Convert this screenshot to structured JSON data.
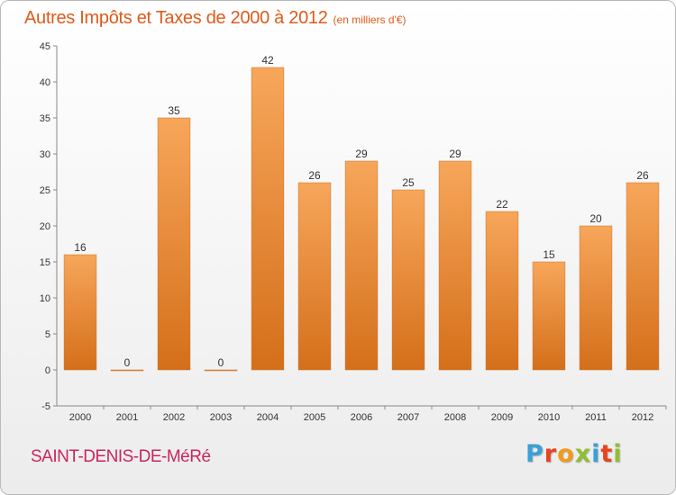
{
  "title": {
    "main": "Autres Impôts et Taxes de 2000 à 2012",
    "unit": "(en milliers d'€)"
  },
  "commune": "SAINT-DENIS-DE-MéRé",
  "logo": {
    "letters": [
      "P",
      "r",
      "o",
      "x",
      "i",
      "t",
      "i"
    ],
    "colors": [
      "#3aa0d8",
      "#e8431f",
      "#f29a1a",
      "#8fbf2f",
      "#3aa0d8",
      "#e8431f",
      "#8fbf2f"
    ]
  },
  "colors": {
    "bar_light": "#f7a65a",
    "bar_dark": "#d46f1a",
    "title": "#e05a1a",
    "commune": "#c8275d"
  },
  "chart_data": {
    "type": "bar",
    "categories": [
      "2000",
      "2001",
      "2002",
      "2003",
      "2004",
      "2005",
      "2006",
      "2007",
      "2008",
      "2009",
      "2010",
      "2011",
      "2012"
    ],
    "values": [
      16,
      0,
      35,
      0,
      42,
      26,
      29,
      25,
      29,
      22,
      15,
      20,
      26
    ],
    "ylim": [
      -5,
      45
    ],
    "yticks": [
      -5,
      0,
      5,
      10,
      15,
      20,
      25,
      30,
      35,
      40,
      45
    ],
    "grid": false
  }
}
